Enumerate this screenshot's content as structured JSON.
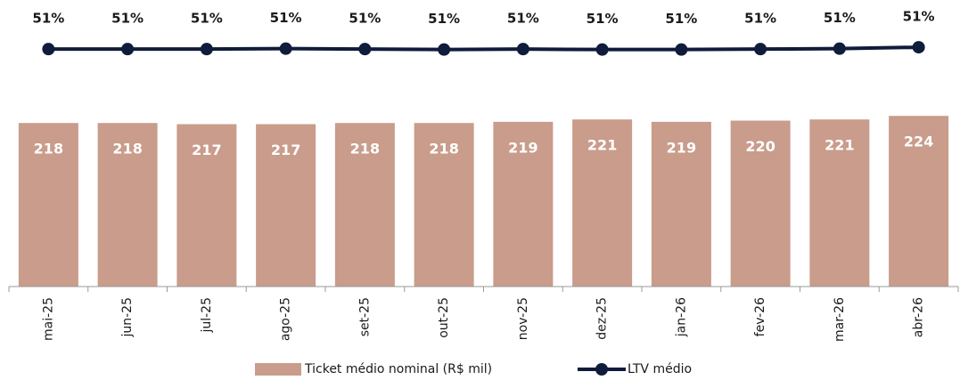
{
  "chart_data": {
    "type": "bar-line",
    "categories": [
      "mai-25",
      "jun-25",
      "jul-25",
      "ago-25",
      "set-25",
      "out-25",
      "nov-25",
      "dez-25",
      "jan-26",
      "fev-26",
      "mar-26",
      "abr-26"
    ],
    "series": [
      {
        "name": "Ticket médio nominal (R$ mil)",
        "type": "bar",
        "color": "#c99c8b",
        "values": [
          218,
          218,
          217,
          217,
          218,
          218,
          219,
          221,
          219,
          220,
          221,
          224
        ]
      },
      {
        "name": "LTV médio",
        "type": "line",
        "axis": "y2",
        "color": "#0f1c3b",
        "values": [
          51.0,
          51.0,
          51.0,
          51.1,
          51.0,
          50.9,
          51.0,
          50.9,
          50.9,
          51.0,
          51.1,
          51.4
        ],
        "value_labels": [
          "51%",
          "51%",
          "51%",
          "51%",
          "51%",
          "51%",
          "51%",
          "51%",
          "51%",
          "51%",
          "51%",
          "51%"
        ]
      }
    ],
    "ylim": [
      80,
      300
    ],
    "y2lim": [
      0,
      56
    ],
    "legend": "bottom"
  }
}
